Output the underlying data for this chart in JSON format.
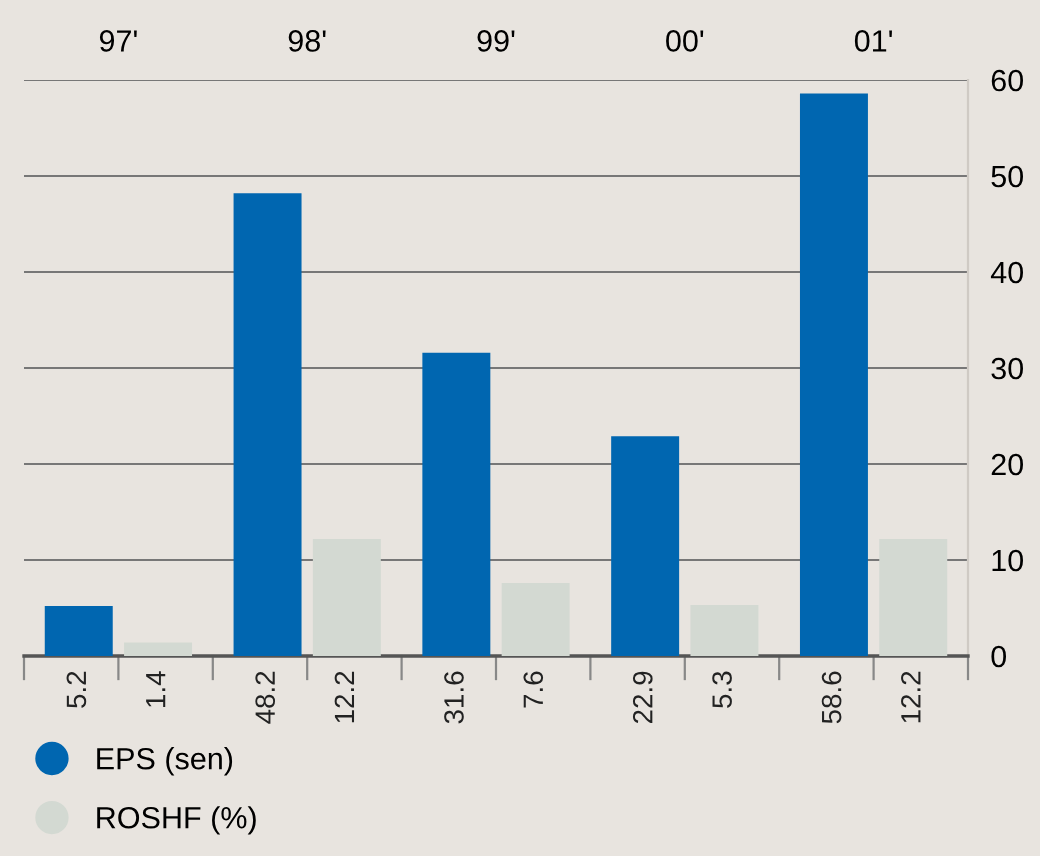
{
  "chart_data": {
    "type": "bar",
    "categories": [
      "97'",
      "98'",
      "99'",
      "00'",
      "01'"
    ],
    "series": [
      {
        "name": "EPS (sen)",
        "color": "#0066b0",
        "values": [
          5.2,
          48.2,
          31.6,
          22.9,
          58.6
        ]
      },
      {
        "name": "ROSHF (%)",
        "color": "#d3d9d2",
        "values": [
          1.4,
          12.2,
          7.6,
          5.3,
          12.2
        ]
      }
    ],
    "ylim": [
      0,
      60
    ],
    "yticks": [
      0,
      10,
      20,
      30,
      40,
      50,
      60
    ],
    "grid": "y",
    "legend": "bottom left",
    "data_labels": true
  }
}
